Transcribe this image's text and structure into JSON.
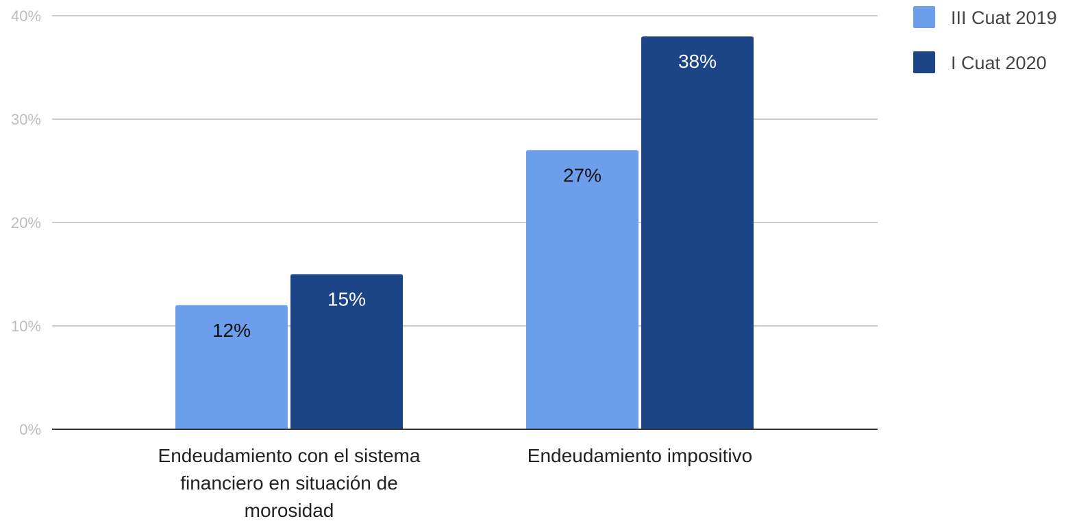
{
  "chart_data": {
    "type": "bar",
    "title": "",
    "xlabel": "",
    "ylabel": "",
    "ylim": [
      0,
      40
    ],
    "yticks": [
      0,
      10,
      20,
      30,
      40
    ],
    "ytick_labels": [
      "0%",
      "10%",
      "20%",
      "30%",
      "40%"
    ],
    "value_suffix": "%",
    "grid": true,
    "legend_position": "top-right",
    "categories": [
      [
        "Endeudamiento con el sistema",
        "financiero en situación de",
        "morosidad"
      ],
      [
        "Endeudamiento impositivo"
      ]
    ],
    "series": [
      {
        "name": "III Cuat 2019",
        "color": "#6d9eeb",
        "label_color": "#111111",
        "values": [
          12,
          27
        ]
      },
      {
        "name": "I Cuat 2020",
        "color": "#1c4587",
        "label_color": "#ffffff",
        "values": [
          15,
          38
        ]
      }
    ],
    "gridline_color": "#cccccc",
    "axis_color": "#333333"
  }
}
